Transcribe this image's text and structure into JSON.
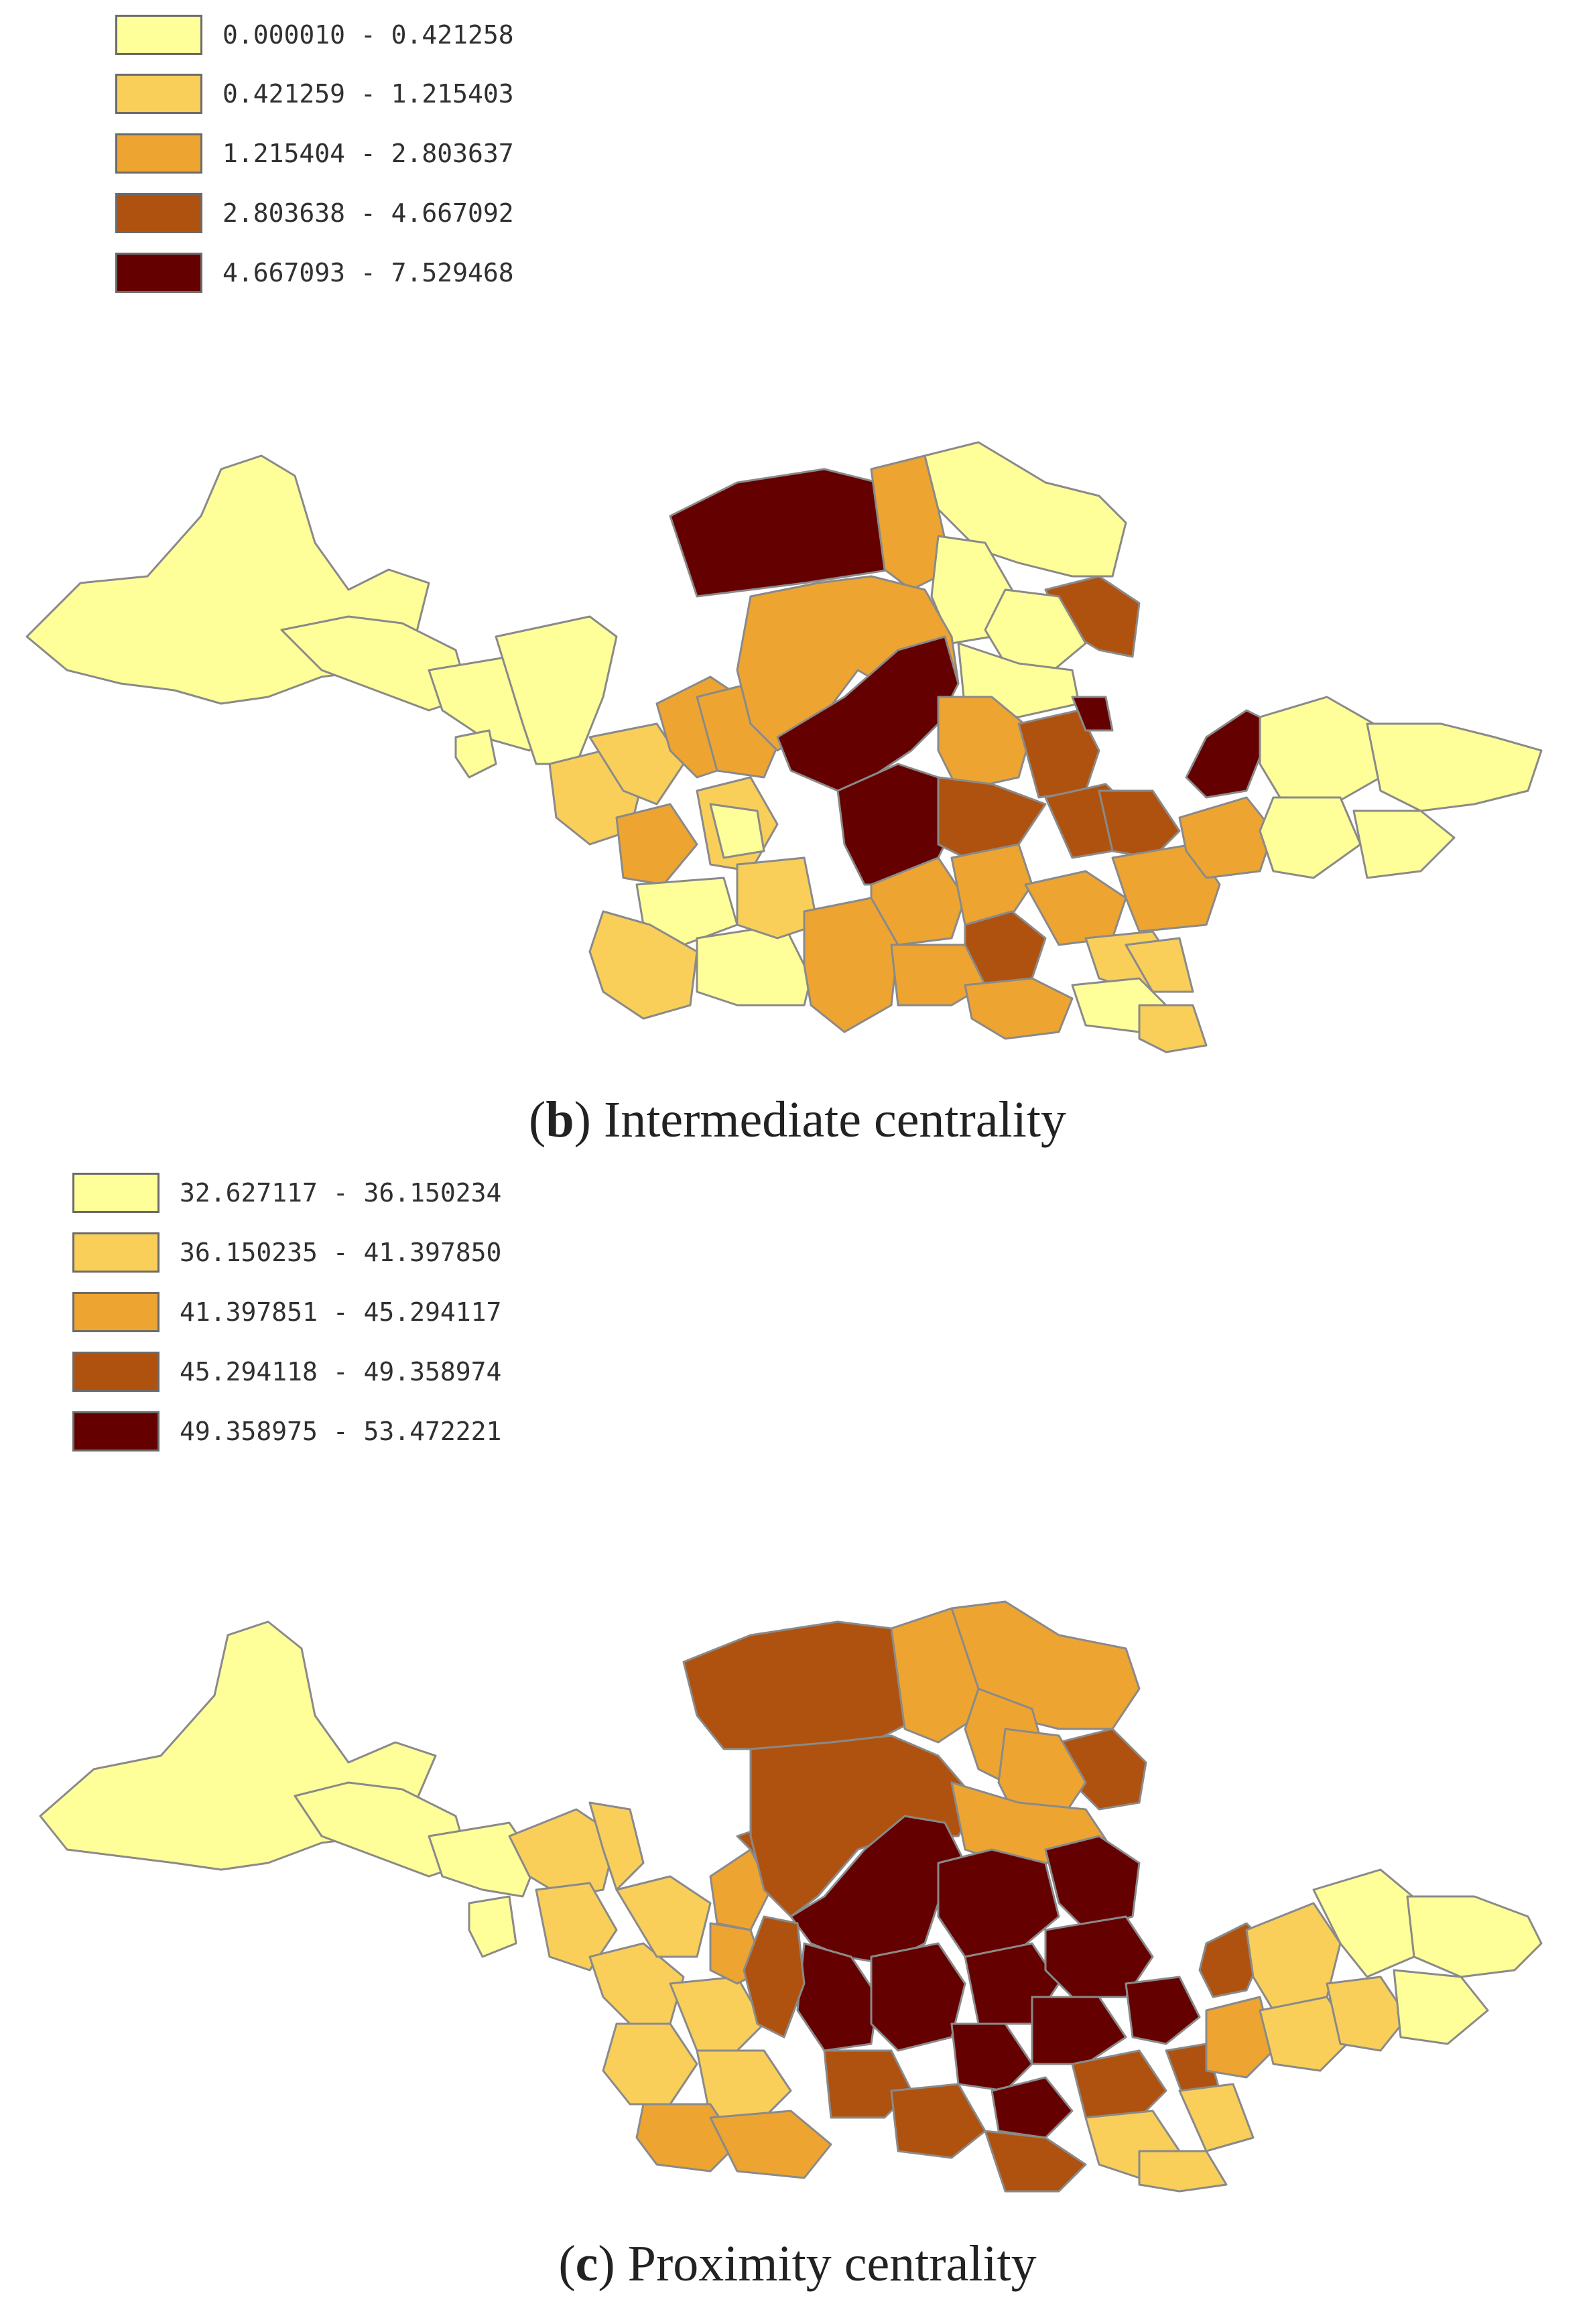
{
  "panels": [
    {
      "id": "b",
      "legend": {
        "classes": [
          {
            "range": "0.000010 - 0.421258",
            "color": "#ffff99"
          },
          {
            "range": "0.421259 - 1.215403",
            "color": "#f9cf5a"
          },
          {
            "range": "1.215404 - 2.803637",
            "color": "#eea431"
          },
          {
            "range": "2.803638 - 4.667092",
            "color": "#b0520f"
          },
          {
            "range": "4.667093 - 7.529468",
            "color": "#650000"
          }
        ]
      },
      "caption_letter": "b",
      "caption_text": "Intermediate centrality"
    },
    {
      "id": "c",
      "legend": {
        "classes": [
          {
            "range": "32.627117 - 36.150234",
            "color": "#ffff99"
          },
          {
            "range": "36.150235 - 41.397850",
            "color": "#f9cf5a"
          },
          {
            "range": "41.397851 - 45.294117",
            "color": "#eea431"
          },
          {
            "range": "45.294118 - 49.358974",
            "color": "#b0520f"
          },
          {
            "range": "49.358975 - 53.472221",
            "color": "#650000"
          }
        ]
      },
      "caption_letter": "c",
      "caption_text": "Proximity centrality"
    }
  ]
}
